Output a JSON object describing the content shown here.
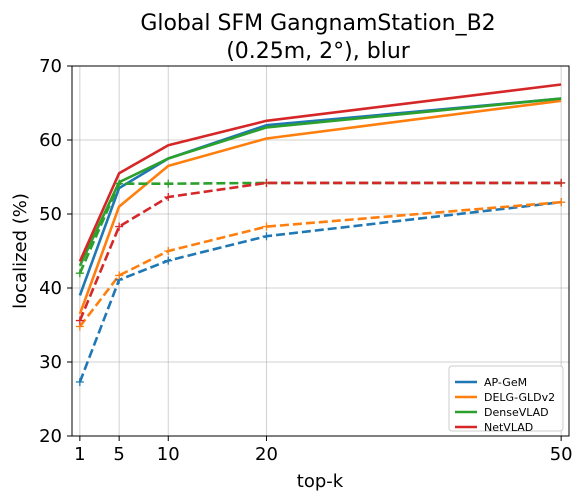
{
  "chart_data": {
    "type": "line",
    "title_lines": [
      "Global SFM GangnamStation_B2",
      "(0.25m, 2°), blur"
    ],
    "xlabel": "top-k",
    "ylabel": "localized (%)",
    "x": [
      1,
      5,
      10,
      20,
      50
    ],
    "xticks": [
      "1",
      "5",
      "10",
      "20",
      "50"
    ],
    "xlim": [
      0.2,
      50.8
    ],
    "ylim": [
      20,
      70
    ],
    "yticks": [
      "20",
      "30",
      "40",
      "50",
      "60",
      "70"
    ],
    "grid": true,
    "legend_position": "lower-right",
    "series": [
      {
        "name": "AP-GeM",
        "color": "#1f77b4",
        "style": "solid",
        "values": [
          39.0,
          53.5,
          57.5,
          62.0,
          65.6
        ]
      },
      {
        "name": "AP-GeM",
        "color": "#1f77b4",
        "style": "dashed",
        "marker": "+",
        "values": [
          27.3,
          41.1,
          43.7,
          47.0,
          51.6
        ]
      },
      {
        "name": "DELG-GLDv2",
        "color": "#ff7f0e",
        "style": "solid",
        "values": [
          36.5,
          51.0,
          56.5,
          60.2,
          65.3
        ]
      },
      {
        "name": "DELG-GLDv2",
        "color": "#ff7f0e",
        "style": "dashed",
        "marker": "+",
        "values": [
          34.8,
          41.7,
          45.0,
          48.3,
          51.6
        ]
      },
      {
        "name": "DenseVLAD",
        "color": "#2ca02c",
        "style": "solid",
        "values": [
          43.0,
          54.3,
          57.5,
          61.7,
          65.6
        ]
      },
      {
        "name": "DenseVLAD",
        "color": "#2ca02c",
        "style": "dashed",
        "marker": "+",
        "values": [
          42.0,
          54.1,
          54.1,
          54.2,
          54.2
        ]
      },
      {
        "name": "NetVLAD",
        "color": "#d62728",
        "style": "solid",
        "values": [
          43.6,
          55.5,
          59.3,
          62.6,
          67.5
        ]
      },
      {
        "name": "NetVLAD",
        "color": "#d62728",
        "style": "dashed",
        "marker": "+",
        "values": [
          35.6,
          48.3,
          52.3,
          54.2,
          54.2
        ]
      }
    ],
    "legend": [
      {
        "label": "AP-GeM",
        "color": "#1f77b4"
      },
      {
        "label": "DELG-GLDv2",
        "color": "#ff7f0e"
      },
      {
        "label": "DenseVLAD",
        "color": "#2ca02c"
      },
      {
        "label": "NetVLAD",
        "color": "#d62728"
      }
    ]
  }
}
